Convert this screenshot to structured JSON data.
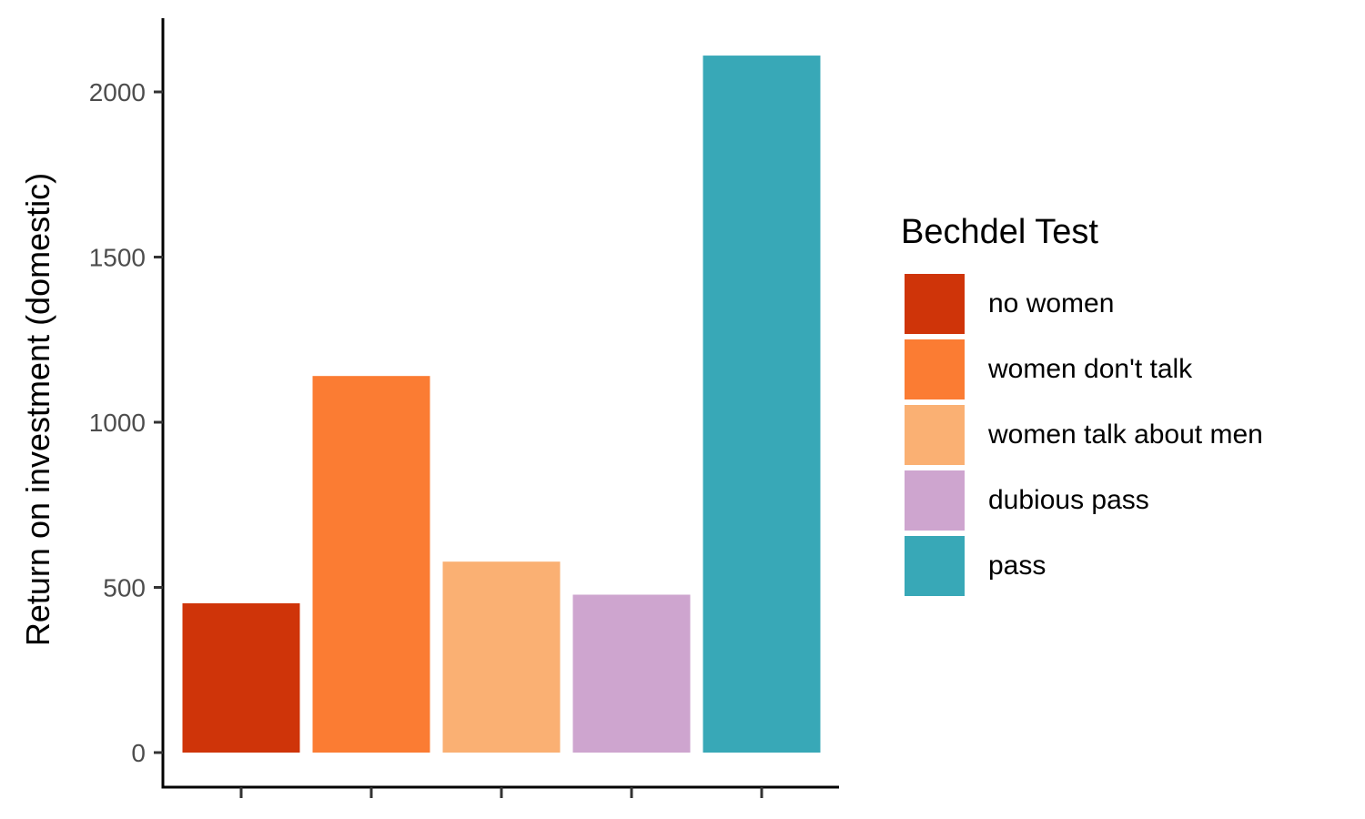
{
  "chart_data": {
    "type": "bar",
    "categories": [
      "no women",
      "women don't talk",
      "women talk about men",
      "dubious pass",
      "pass"
    ],
    "values": [
      452,
      1140,
      578,
      478,
      2110
    ],
    "colors": [
      "#CF3409",
      "#FB7C33",
      "#FAB073",
      "#CEA5CF",
      "#38A8B7"
    ],
    "ylabel": "Return on investment (domestic)",
    "xlabel": "",
    "ylim": [
      0,
      2200
    ],
    "yticks": [
      0,
      500,
      1000,
      1500,
      2000
    ],
    "grid": false,
    "legend": {
      "title": "Bechdel Test",
      "position": "right",
      "items": [
        "no women",
        "women don't talk",
        "women talk about men",
        "dubious pass",
        "pass"
      ]
    }
  }
}
